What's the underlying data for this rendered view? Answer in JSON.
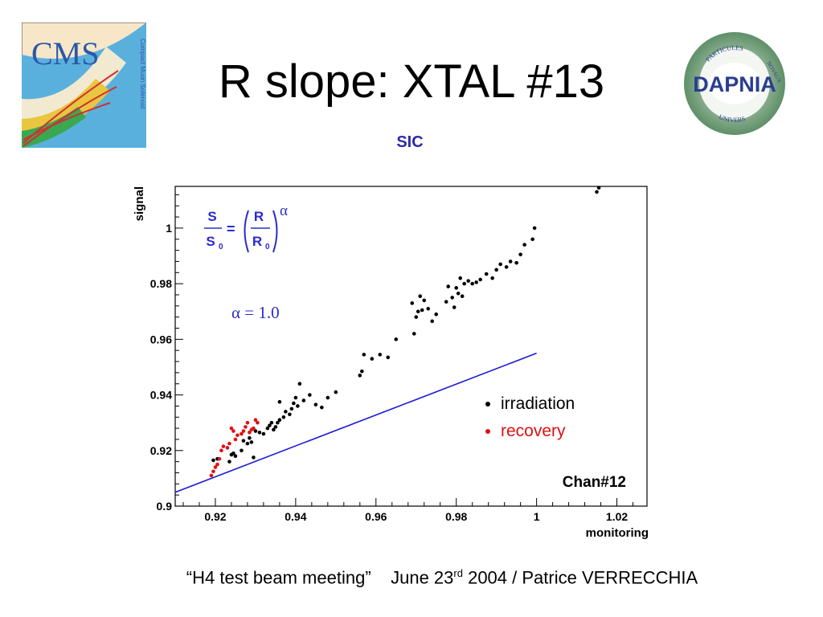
{
  "slide": {
    "title": "R slope: XTAL #13",
    "subtitle": "SIC",
    "footer": {
      "meeting": "“H4 test beam meeting”",
      "date_prefix": "June 23",
      "date_sup": "rd",
      "date_suffix": " 2004 / Patrice VERRECCHIA"
    },
    "logos": {
      "cms": {
        "text": "CMS",
        "subtext": "Compact Muon Solenoid"
      },
      "dapnia": {
        "text": "DAPNIA",
        "ring_top": "PARTICULES",
        "ring_right": "NOYAUX",
        "ring_bottom": "UNIVERS"
      }
    },
    "colors": {
      "accent": "#2a2aa6",
      "fit_line": "#1a1ad6",
      "irradiation": "#000000",
      "recovery": "#e01010"
    }
  },
  "chart_data": {
    "type": "scatter",
    "xlabel": "monitoring",
    "ylabel": "signal",
    "xlim": [
      0.91,
      1.0275
    ],
    "ylim": [
      0.9,
      1.015
    ],
    "xticks": [
      "0.92",
      "0.94",
      "0.96",
      "0.98",
      "1",
      "1.02"
    ],
    "xtick_values": [
      0.92,
      0.94,
      0.96,
      0.98,
      1.0,
      1.02
    ],
    "yticks": [
      "0.9",
      "0.92",
      "0.94",
      "0.96",
      "0.98",
      "1"
    ],
    "ytick_values": [
      0.9,
      0.92,
      0.94,
      0.96,
      0.98,
      1.0
    ],
    "formula": {
      "lhs_num": "S",
      "lhs_den": "S",
      "lhs_den_sub": "0",
      "eq": "=",
      "rhs_num": "R",
      "rhs_den": "R",
      "rhs_den_sub": "0",
      "exponent": "α"
    },
    "alpha_label": "α = 1.0",
    "legend": [
      {
        "name": "irradiation",
        "color": "#000000"
      },
      {
        "name": "recovery",
        "color": "#e01010"
      }
    ],
    "annotation": "Chan#12",
    "fit_line": {
      "x": [
        0.91,
        1.0
      ],
      "y": [
        0.905,
        0.955
      ]
    },
    "series": [
      {
        "name": "irradiation",
        "color": "#000000",
        "points": [
          [
            0.9195,
            0.9165
          ],
          [
            0.9205,
            0.917
          ],
          [
            0.9235,
            0.916
          ],
          [
            0.924,
            0.9185
          ],
          [
            0.9245,
            0.919
          ],
          [
            0.925,
            0.918
          ],
          [
            0.9265,
            0.92
          ],
          [
            0.927,
            0.9235
          ],
          [
            0.928,
            0.9225
          ],
          [
            0.9285,
            0.9245
          ],
          [
            0.929,
            0.923
          ],
          [
            0.9295,
            0.9175
          ],
          [
            0.93,
            0.927
          ],
          [
            0.931,
            0.9265
          ],
          [
            0.932,
            0.926
          ],
          [
            0.933,
            0.928
          ],
          [
            0.9335,
            0.929
          ],
          [
            0.934,
            0.93
          ],
          [
            0.9345,
            0.9275
          ],
          [
            0.935,
            0.9285
          ],
          [
            0.9355,
            0.93
          ],
          [
            0.936,
            0.931
          ],
          [
            0.936,
            0.9375
          ],
          [
            0.937,
            0.932
          ],
          [
            0.9375,
            0.934
          ],
          [
            0.9385,
            0.933
          ],
          [
            0.939,
            0.935
          ],
          [
            0.9395,
            0.937
          ],
          [
            0.94,
            0.939
          ],
          [
            0.9405,
            0.936
          ],
          [
            0.941,
            0.944
          ],
          [
            0.942,
            0.938
          ],
          [
            0.9435,
            0.94
          ],
          [
            0.945,
            0.9365
          ],
          [
            0.9465,
            0.9355
          ],
          [
            0.948,
            0.939
          ],
          [
            0.95,
            0.941
          ],
          [
            0.956,
            0.947
          ],
          [
            0.9565,
            0.9485
          ],
          [
            0.957,
            0.9545
          ],
          [
            0.959,
            0.953
          ],
          [
            0.961,
            0.9545
          ],
          [
            0.963,
            0.9535
          ],
          [
            0.965,
            0.96
          ],
          [
            0.969,
            0.973
          ],
          [
            0.9695,
            0.962
          ],
          [
            0.97,
            0.968
          ],
          [
            0.9705,
            0.97
          ],
          [
            0.971,
            0.9755
          ],
          [
            0.9715,
            0.9705
          ],
          [
            0.972,
            0.974
          ],
          [
            0.973,
            0.971
          ],
          [
            0.974,
            0.9665
          ],
          [
            0.975,
            0.969
          ],
          [
            0.9775,
            0.9735
          ],
          [
            0.978,
            0.979
          ],
          [
            0.979,
            0.975
          ],
          [
            0.9795,
            0.9715
          ],
          [
            0.98,
            0.9785
          ],
          [
            0.9805,
            0.9765
          ],
          [
            0.981,
            0.982
          ],
          [
            0.9815,
            0.9755
          ],
          [
            0.982,
            0.98
          ],
          [
            0.983,
            0.981
          ],
          [
            0.984,
            0.98
          ],
          [
            0.985,
            0.9805
          ],
          [
            0.986,
            0.9815
          ],
          [
            0.9875,
            0.9835
          ],
          [
            0.989,
            0.982
          ],
          [
            0.99,
            0.985
          ],
          [
            0.991,
            0.987
          ],
          [
            0.9925,
            0.986
          ],
          [
            0.9935,
            0.988
          ],
          [
            0.995,
            0.9875
          ],
          [
            0.996,
            0.9905
          ],
          [
            0.997,
            0.994
          ],
          [
            0.999,
            0.996
          ],
          [
            0.9995,
            1.0
          ],
          [
            1.015,
            1.013
          ],
          [
            1.0155,
            1.0145
          ]
        ]
      },
      {
        "name": "recovery",
        "color": "#e01010",
        "points": [
          [
            0.919,
            0.911
          ],
          [
            0.9195,
            0.9125
          ],
          [
            0.92,
            0.914
          ],
          [
            0.9205,
            0.915
          ],
          [
            0.921,
            0.917
          ],
          [
            0.9215,
            0.92
          ],
          [
            0.922,
            0.9215
          ],
          [
            0.923,
            0.921
          ],
          [
            0.9235,
            0.9225
          ],
          [
            0.924,
            0.928
          ],
          [
            0.9245,
            0.927
          ],
          [
            0.925,
            0.924
          ],
          [
            0.9255,
            0.9255
          ],
          [
            0.9265,
            0.926
          ],
          [
            0.927,
            0.927
          ],
          [
            0.9275,
            0.9285
          ],
          [
            0.928,
            0.93
          ],
          [
            0.9285,
            0.9265
          ],
          [
            0.929,
            0.9275
          ],
          [
            0.9295,
            0.928
          ],
          [
            0.93,
            0.931
          ],
          [
            0.9305,
            0.93
          ]
        ]
      }
    ]
  }
}
